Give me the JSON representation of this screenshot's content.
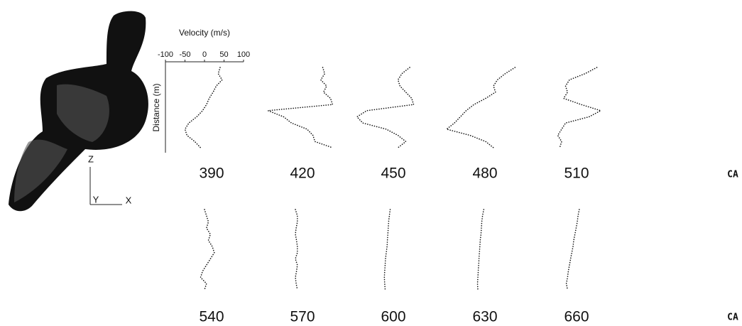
{
  "chart_data": [
    {
      "type": "line",
      "title": "390",
      "xlabel": "Velocity (m/s)",
      "ylabel": "Distance (m)",
      "xlim": [
        -100,
        100
      ],
      "xticks": [
        -100,
        -50,
        0,
        50,
        100
      ],
      "color": "#111111",
      "values": [
        40,
        35,
        45,
        30,
        22,
        12,
        5,
        -5,
        -20,
        -40,
        -50,
        -45,
        -25,
        -10
      ]
    },
    {
      "type": "line",
      "title": "420",
      "xlim": [
        -100,
        100
      ],
      "color": "#111111",
      "values": [
        70,
        75,
        65,
        80,
        72,
        90,
        95,
        -70,
        -30,
        -10,
        30,
        45,
        50,
        95
      ]
    },
    {
      "type": "line",
      "title": "450",
      "xlim": [
        -100,
        100
      ],
      "color": "#111111",
      "values": [
        60,
        40,
        30,
        35,
        50,
        65,
        70,
        -50,
        -75,
        -60,
        0,
        30,
        50,
        30
      ]
    },
    {
      "type": "line",
      "title": "480",
      "xlim": [
        -100,
        100
      ],
      "color": "#111111",
      "values": [
        95,
        70,
        50,
        40,
        45,
        20,
        -10,
        -30,
        -45,
        -60,
        -80,
        -20,
        20,
        40
      ]
    },
    {
      "type": "line",
      "title": "510",
      "xlim": [
        -100,
        100
      ],
      "color": "#111111",
      "values": [
        70,
        40,
        0,
        -10,
        -5,
        -15,
        30,
        80,
        50,
        -10,
        -20,
        -30,
        -20,
        -25
      ]
    },
    {
      "type": "line",
      "title": "540",
      "xlim": [
        -100,
        100
      ],
      "color": "#111111",
      "values": [
        0,
        5,
        10,
        5,
        15,
        10,
        20,
        25,
        15,
        5,
        -5,
        -10,
        5,
        0
      ]
    },
    {
      "type": "line",
      "title": "570",
      "xlim": [
        -100,
        100
      ],
      "color": "#111111",
      "values": [
        0,
        5,
        5,
        2,
        0,
        3,
        5,
        5,
        0,
        5,
        3,
        0,
        2,
        5
      ]
    },
    {
      "type": "line",
      "title": "600",
      "xlim": [
        -100,
        100
      ],
      "color": "#111111",
      "values": [
        10,
        8,
        6,
        5,
        4,
        3,
        2,
        0,
        -2,
        -3,
        -4,
        -5,
        -4,
        -3
      ]
    },
    {
      "type": "line",
      "title": "630",
      "xlim": [
        -100,
        100
      ],
      "color": "#111111",
      "values": [
        15,
        12,
        10,
        9,
        8,
        6,
        5,
        4,
        3,
        2,
        1,
        0,
        -1,
        0
      ]
    },
    {
      "type": "line",
      "title": "660",
      "xlim": [
        -100,
        100
      ],
      "color": "#111111",
      "values": [
        25,
        22,
        20,
        17,
        14,
        11,
        9,
        6,
        3,
        0,
        -3,
        -5,
        -8,
        -5
      ]
    }
  ],
  "row_labels": [
    "CA",
    "CA"
  ],
  "geometry_axes": {
    "z": "Z",
    "y": "Y",
    "x": "X"
  }
}
